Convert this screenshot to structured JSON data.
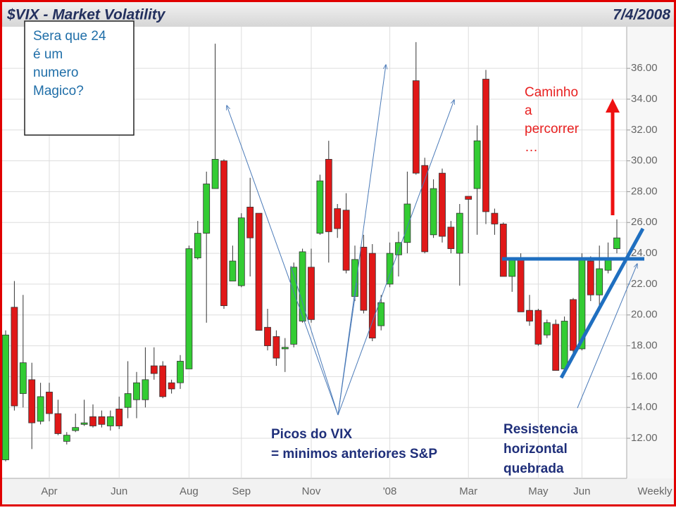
{
  "chart_data": {
    "type": "candlestick",
    "title": "$VIX - Market Volatility",
    "date": "7/4/2008",
    "period_label": "Weekly",
    "categories": [
      null,
      null,
      null,
      null,
      null,
      "Apr",
      null,
      null,
      null,
      null,
      null,
      null,
      null,
      "Jun",
      null,
      null,
      null,
      null,
      null,
      null,
      null,
      "Aug",
      null,
      null,
      null,
      null,
      null,
      "Sep",
      null,
      null,
      null,
      null,
      null,
      null,
      null,
      "Nov",
      null,
      null,
      null,
      null,
      null,
      null,
      null,
      null,
      "'08",
      null,
      null,
      null,
      null,
      null,
      null,
      null,
      null,
      "Mar",
      null,
      null,
      null,
      null,
      null,
      null,
      null,
      "May",
      null,
      null,
      null,
      null,
      "Jun",
      null,
      null,
      null,
      null
    ],
    "open": [
      10.6,
      20.5,
      14.9,
      15.8,
      13.1,
      15.0,
      13.6,
      11.8,
      12.5,
      12.9,
      13.4,
      13.4,
      12.8,
      13.9,
      14.0,
      14.5,
      14.5,
      16.7,
      16.7,
      15.6,
      15.6,
      16.5,
      23.7,
      25.3,
      28.2,
      30.0,
      22.2,
      21.9,
      27.0,
      26.6,
      19.2,
      18.6,
      17.8,
      18.1,
      19.6,
      23.1,
      25.3,
      30.1,
      26.9,
      26.8,
      21.2,
      24.4,
      24.0,
      19.3,
      22.0,
      23.9,
      24.7,
      35.2,
      29.7,
      25.2,
      29.2,
      25.7,
      24.0,
      27.7,
      28.2,
      35.3,
      26.6,
      25.9,
      22.5,
      23.6,
      20.3,
      20.3,
      18.7,
      19.4,
      16.5,
      21.0,
      17.8,
      23.5,
      21.3,
      22.9,
      24.3
    ],
    "high": [
      19.0,
      22.2,
      21.3,
      16.9,
      15.6,
      15.6,
      14.5,
      12.4,
      13.6,
      14.5,
      14.2,
      13.8,
      13.8,
      14.7,
      17.0,
      16.3,
      17.9,
      17.9,
      17.0,
      15.8,
      17.4,
      24.5,
      26.1,
      29.3,
      37.6,
      30.1,
      24.5,
      26.6,
      28.9,
      26.6,
      20.4,
      19.0,
      18.5,
      23.4,
      24.3,
      24.3,
      29.1,
      31.3,
      27.2,
      27.9,
      24.5,
      25.2,
      24.6,
      21.3,
      24.7,
      25.4,
      29.3,
      37.7,
      30.2,
      28.8,
      29.5,
      26.1,
      27.2,
      27.7,
      32.3,
      35.9,
      26.9,
      26.0,
      23.7,
      24.0,
      21.3,
      20.4,
      19.7,
      19.7,
      19.9,
      21.1,
      24.0,
      23.8,
      24.5,
      24.7,
      26.2
    ],
    "low": [
      10.5,
      13.8,
      14.0,
      11.3,
      12.9,
      13.1,
      12.2,
      11.6,
      12.4,
      12.8,
      12.7,
      12.7,
      12.5,
      12.6,
      13.3,
      13.3,
      14.0,
      15.8,
      14.6,
      14.9,
      15.2,
      16.5,
      23.6,
      19.5,
      28.2,
      20.4,
      22.2,
      21.8,
      22.5,
      19.0,
      17.7,
      16.7,
      16.3,
      17.9,
      19.5,
      19.5,
      25.2,
      23.4,
      25.0,
      22.7,
      20.9,
      20.1,
      18.3,
      19.0,
      21.8,
      22.5,
      24.0,
      29.1,
      24.0,
      25.0,
      24.7,
      24.0,
      21.9,
      24.0,
      25.2,
      25.9,
      25.2,
      22.5,
      21.5,
      20.2,
      19.3,
      18.0,
      18.5,
      16.4,
      16.3,
      17.4,
      17.7,
      20.9,
      20.4,
      22.7,
      24.0
    ],
    "close": [
      18.7,
      14.1,
      16.9,
      13.0,
      14.7,
      13.6,
      12.3,
      12.2,
      12.7,
      13.0,
      12.8,
      12.9,
      13.4,
      12.8,
      14.9,
      15.6,
      15.8,
      16.2,
      14.7,
      15.2,
      17.0,
      24.3,
      25.3,
      28.5,
      30.1,
      20.6,
      23.5,
      26.3,
      25.0,
      19.0,
      18.0,
      17.2,
      17.9,
      23.1,
      24.1,
      19.7,
      28.7,
      25.4,
      25.6,
      22.9,
      23.6,
      20.3,
      18.5,
      20.8,
      24.0,
      24.7,
      27.2,
      29.2,
      24.1,
      28.2,
      25.1,
      24.3,
      26.6,
      27.5,
      31.3,
      26.7,
      25.9,
      22.5,
      23.6,
      20.2,
      19.6,
      18.1,
      19.5,
      16.4,
      19.6,
      17.7,
      23.7,
      21.3,
      23.0,
      23.6,
      25.0
    ],
    "up_color": "#33cc33",
    "down_color": "#e01818",
    "ylim": [
      9.4,
      38.7
    ],
    "yticks": [
      {
        "value": 12,
        "label": "12.00"
      },
      {
        "value": 14,
        "label": "14.00"
      },
      {
        "value": 16,
        "label": "16.00"
      },
      {
        "value": 18,
        "label": "18.00"
      },
      {
        "value": 20,
        "label": "20.00"
      },
      {
        "value": 22,
        "label": "22.00"
      },
      {
        "value": 24,
        "label": "24.00"
      },
      {
        "value": 26,
        "label": "26.00"
      },
      {
        "value": 28,
        "label": "28.00"
      },
      {
        "value": 30,
        "label": "30.00"
      },
      {
        "value": 32,
        "label": "32.00"
      },
      {
        "value": 34,
        "label": "34.00"
      },
      {
        "value": 36,
        "label": "36.00"
      }
    ],
    "grid": true,
    "annotations": {
      "question": [
        "Sera que 24",
        "é um",
        "numero",
        "Magico?"
      ],
      "path": [
        "Caminho",
        "a",
        "percorrer",
        "…"
      ],
      "peaks": [
        "Picos do VIX",
        "= minimos anteriores S&P"
      ],
      "resistance": [
        "Resistencia",
        "horizontal",
        "quebrada"
      ]
    }
  }
}
